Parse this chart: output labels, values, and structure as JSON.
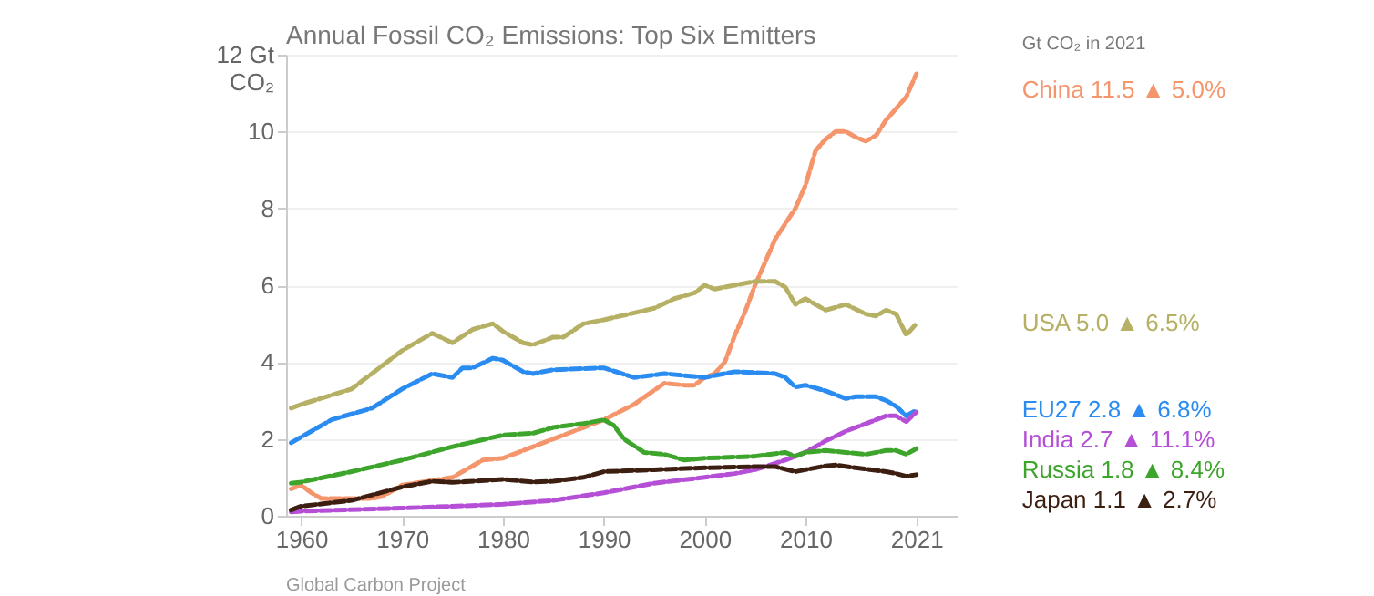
{
  "chart_data": {
    "type": "line",
    "title": "Annual Fossil CO₂ Emissions: Top Six Emitters",
    "legend_title": "Gt CO₂ in 2021",
    "annotations": [
      "Global Carbon Project"
    ],
    "xlim": [
      1958.5,
      2025
    ],
    "xticks": [
      1960,
      1970,
      1980,
      1990,
      2000,
      2010,
      2021
    ],
    "ylim": [
      0,
      12
    ],
    "yticks": [
      0,
      2,
      4,
      6,
      8,
      10,
      {
        "value": 12,
        "label": "12 Gt CO₂"
      }
    ],
    "grid": "y",
    "line_style": "dashed",
    "legend": "right",
    "series": [
      {
        "name": "China 11.5 ▲ 5.0%",
        "color": "#f4956b",
        "x": [
          1959,
          1960,
          1961,
          1962,
          1965,
          1967,
          1968,
          1970,
          1975,
          1978,
          1980,
          1985,
          1990,
          1993,
          1996,
          1998,
          1999,
          2000,
          2001,
          2002,
          2003,
          2004,
          2005,
          2006,
          2007,
          2008,
          2009,
          2010,
          2011,
          2012,
          2013,
          2014,
          2015,
          2016,
          2017,
          2018,
          2019,
          2020,
          2021
        ],
        "values": [
          0.7,
          0.8,
          0.6,
          0.45,
          0.45,
          0.45,
          0.5,
          0.8,
          1.0,
          1.45,
          1.5,
          2.0,
          2.5,
          2.9,
          3.45,
          3.4,
          3.4,
          3.6,
          3.7,
          4.0,
          4.7,
          5.3,
          6.0,
          6.6,
          7.2,
          7.6,
          8.0,
          8.6,
          9.5,
          9.8,
          10.0,
          10.0,
          9.85,
          9.75,
          9.9,
          10.3,
          10.6,
          10.9,
          11.5
        ]
      },
      {
        "name": "USA 5.0 ▲ 6.5%",
        "color": "#b5b064",
        "x": [
          1959,
          1960,
          1965,
          1970,
          1973,
          1975,
          1977,
          1979,
          1980,
          1982,
          1983,
          1985,
          1986,
          1988,
          1990,
          1995,
          1997,
          1999,
          2000,
          2001,
          2005,
          2007,
          2008,
          2009,
          2010,
          2012,
          2014,
          2016,
          2017,
          2018,
          2019,
          2020,
          2021
        ],
        "values": [
          2.8,
          2.9,
          3.3,
          4.3,
          4.75,
          4.5,
          4.85,
          5.0,
          4.8,
          4.5,
          4.45,
          4.65,
          4.65,
          5.0,
          5.1,
          5.4,
          5.65,
          5.8,
          6.0,
          5.9,
          6.1,
          6.1,
          5.95,
          5.5,
          5.65,
          5.35,
          5.5,
          5.25,
          5.2,
          5.35,
          5.25,
          4.7,
          5.0
        ]
      },
      {
        "name": "EU27 2.8 ▲ 6.8%",
        "color": "#2a8cf0",
        "x": [
          1959,
          1960,
          1963,
          1965,
          1967,
          1970,
          1973,
          1975,
          1976,
          1977,
          1979,
          1980,
          1982,
          1983,
          1985,
          1990,
          1993,
          1996,
          2000,
          2003,
          2007,
          2008,
          2009,
          2010,
          2012,
          2014,
          2015,
          2017,
          2018,
          2019,
          2020,
          2021
        ],
        "values": [
          1.9,
          2.05,
          2.5,
          2.65,
          2.8,
          3.3,
          3.7,
          3.6,
          3.85,
          3.85,
          4.1,
          4.05,
          3.75,
          3.7,
          3.8,
          3.85,
          3.6,
          3.7,
          3.6,
          3.75,
          3.7,
          3.6,
          3.35,
          3.4,
          3.25,
          3.05,
          3.1,
          3.1,
          3.0,
          2.85,
          2.6,
          2.75
        ]
      },
      {
        "name": "India 2.7 ▲ 11.1%",
        "color": "#b44fd6",
        "x": [
          1959,
          1960,
          1970,
          1980,
          1985,
          1990,
          1995,
          2000,
          2003,
          2005,
          2008,
          2010,
          2012,
          2014,
          2016,
          2018,
          2019,
          2020,
          2021
        ],
        "values": [
          0.1,
          0.12,
          0.2,
          0.3,
          0.4,
          0.6,
          0.85,
          1.0,
          1.1,
          1.2,
          1.45,
          1.65,
          1.95,
          2.2,
          2.4,
          2.6,
          2.6,
          2.45,
          2.7
        ]
      },
      {
        "name": "Russia 1.8 ▲ 8.4%",
        "color": "#3ea52c",
        "x": [
          1959,
          1960,
          1965,
          1970,
          1975,
          1980,
          1983,
          1985,
          1988,
          1990,
          1991,
          1992,
          1994,
          1996,
          1998,
          2000,
          2005,
          2008,
          2009,
          2010,
          2012,
          2014,
          2016,
          2018,
          2019,
          2020,
          2021
        ],
        "values": [
          0.85,
          0.88,
          1.15,
          1.45,
          1.8,
          2.1,
          2.15,
          2.3,
          2.4,
          2.5,
          2.35,
          2.0,
          1.65,
          1.6,
          1.45,
          1.5,
          1.55,
          1.65,
          1.55,
          1.65,
          1.7,
          1.65,
          1.6,
          1.7,
          1.7,
          1.6,
          1.75
        ]
      },
      {
        "name": "Japan 1.1 ▲ 2.7%",
        "color": "#3d1f12",
        "x": [
          1959,
          1960,
          1965,
          1970,
          1973,
          1975,
          1980,
          1983,
          1985,
          1988,
          1990,
          1995,
          2000,
          2005,
          2007,
          2009,
          2010,
          2012,
          2013,
          2015,
          2018,
          2019,
          2020,
          2021
        ],
        "values": [
          0.15,
          0.25,
          0.4,
          0.75,
          0.9,
          0.87,
          0.95,
          0.88,
          0.9,
          1.0,
          1.15,
          1.2,
          1.25,
          1.28,
          1.28,
          1.15,
          1.2,
          1.3,
          1.32,
          1.25,
          1.15,
          1.1,
          1.03,
          1.07
        ]
      }
    ]
  }
}
